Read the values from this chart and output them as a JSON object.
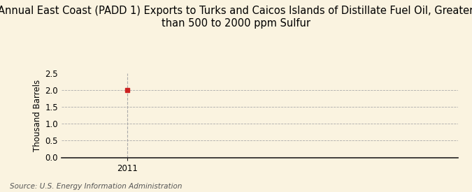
{
  "title": "Annual East Coast (PADD 1) Exports to Turks and Caicos Islands of Distillate Fuel Oil, Greater\nthan 500 to 2000 ppm Sulfur",
  "ylabel": "Thousand Barrels",
  "source": "Source: U.S. Energy Information Administration",
  "x_data": [
    2011
  ],
  "y_data": [
    2.0
  ],
  "ylim": [
    0.0,
    2.5
  ],
  "yticks": [
    0.0,
    0.5,
    1.0,
    1.5,
    2.0,
    2.5
  ],
  "xticks": [
    2011
  ],
  "background_color": "#faf3e0",
  "plot_bg_color": "#faf3e0",
  "grid_color": "#aaaaaa",
  "marker_color": "#cc2222",
  "axis_color": "#222222",
  "title_fontsize": 10.5,
  "label_fontsize": 8.5,
  "tick_fontsize": 8.5,
  "source_fontsize": 7.5
}
